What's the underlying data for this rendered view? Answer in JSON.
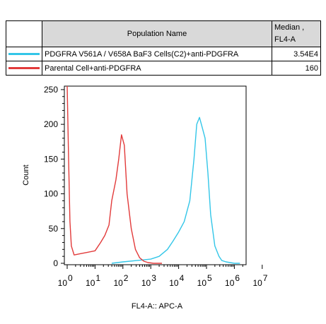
{
  "legend": {
    "header_population": "Population Name",
    "header_median_line1": "Median ,",
    "header_median_line2": "FL4-A",
    "rows": [
      {
        "name": "PDGFRA V561A / V658A BaF3 Cells(C2)+anti-PDGFRA",
        "median": "3.54E4",
        "color": "#33c6e8"
      },
      {
        "name": "Parental Cell+anti-PDGFRA",
        "median": "160",
        "color": "#e23a3a"
      }
    ]
  },
  "chart_data": {
    "type": "line",
    "xlabel": "FL4-A:: APC-A",
    "ylabel": "Count",
    "xscale": "log",
    "xlim": [
      0,
      7.3
    ],
    "ylim": [
      0,
      255
    ],
    "x_tick_labels": [
      {
        "base": "10",
        "exp": "0"
      },
      {
        "base": "10",
        "exp": "1"
      },
      {
        "base": "10",
        "exp": "2"
      },
      {
        "base": "10",
        "exp": "3"
      },
      {
        "base": "10",
        "exp": "4"
      },
      {
        "base": "10",
        "exp": "5"
      },
      {
        "base": "10",
        "exp": "6"
      },
      {
        "base": "10",
        "exp": "7"
      }
    ],
    "y_ticks": [
      0,
      50,
      100,
      150,
      200,
      250
    ],
    "series": [
      {
        "name": "PDGFRA V561A / V658A BaF3 Cells(C2)+anti-PDGFRA",
        "color": "#33c6e8",
        "x_log10": [
          1.6,
          2.0,
          2.5,
          3.0,
          3.3,
          3.6,
          3.8,
          4.0,
          4.2,
          4.4,
          4.55,
          4.65,
          4.75,
          4.85,
          4.95,
          5.05,
          5.15,
          5.3,
          5.45,
          5.55,
          5.7,
          5.85,
          6.0,
          6.2
        ],
        "y": [
          0,
          2,
          4,
          6,
          10,
          20,
          32,
          45,
          60,
          90,
          150,
          200,
          210,
          195,
          180,
          130,
          70,
          25,
          10,
          4,
          2,
          1,
          0,
          0
        ]
      },
      {
        "name": "Parental Cell+anti-PDGFRA",
        "color": "#e23a3a",
        "x_log10": [
          0,
          0.05,
          0.1,
          0.15,
          0.25,
          0.5,
          0.75,
          1.0,
          1.2,
          1.35,
          1.5,
          1.6,
          1.75,
          1.85,
          1.95,
          2.05,
          2.15,
          2.3,
          2.45,
          2.6,
          2.75,
          2.9,
          3.1,
          3.4
        ],
        "y": [
          255,
          150,
          60,
          25,
          12,
          14,
          16,
          18,
          30,
          40,
          55,
          90,
          120,
          150,
          185,
          170,
          100,
          50,
          20,
          8,
          3,
          1,
          0,
          0
        ]
      }
    ]
  }
}
